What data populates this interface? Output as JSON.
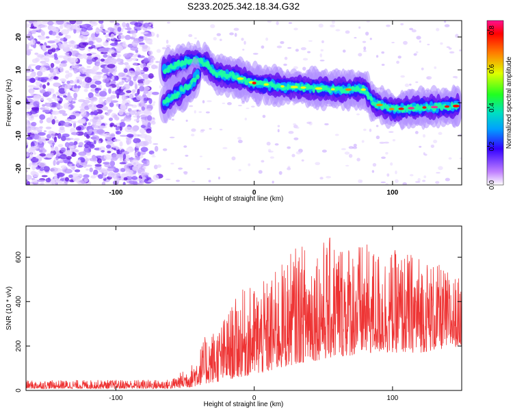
{
  "title": "S233.2025.342.18.34.G32",
  "chart_data": [
    {
      "type": "heatmap",
      "xlabel": "Height of straight line (km)",
      "ylabel": "Frequency (Hz)",
      "xlim": [
        -165,
        150
      ],
      "ylim": [
        -25,
        25
      ],
      "x_ticks": [
        -100,
        0,
        100
      ],
      "y_ticks": [
        -20,
        -10,
        0,
        10,
        20
      ],
      "colorbar": {
        "label": "Normalized spectral amplitude",
        "range": [
          0,
          0.85
        ],
        "ticks": [
          0.0,
          0.2,
          0.4,
          0.6,
          0.8
        ]
      },
      "ridge": [
        {
          "x": -65,
          "y": 10
        },
        {
          "x": -45,
          "y": 13
        },
        {
          "x": -35,
          "y": 12
        },
        {
          "x": -28,
          "y": 9
        },
        {
          "x": -15,
          "y": 8
        },
        {
          "x": 0,
          "y": 6
        },
        {
          "x": 20,
          "y": 5
        },
        {
          "x": 40,
          "y": 4.5
        },
        {
          "x": 60,
          "y": 4
        },
        {
          "x": 80,
          "y": 4
        },
        {
          "x": 86,
          "y": 0
        },
        {
          "x": 100,
          "y": -2
        },
        {
          "x": 120,
          "y": -1.5
        },
        {
          "x": 148,
          "y": -1
        }
      ],
      "ridge_lower_branch": [
        {
          "x": -65,
          "y": 0
        },
        {
          "x": -55,
          "y": 3
        },
        {
          "x": -45,
          "y": 6
        },
        {
          "x": -40,
          "y": 9
        }
      ]
    },
    {
      "type": "line",
      "xlabel": "Height of straight line (km)",
      "ylabel": "SNR (10 * v/v)",
      "xlim": [
        -165,
        150
      ],
      "ylim": [
        0,
        740
      ],
      "x_ticks": [
        -100,
        0,
        100
      ],
      "y_ticks": [
        0,
        200,
        400,
        600
      ],
      "series_color": "#ee3333",
      "trend": [
        {
          "x": -165,
          "min": 8,
          "max": 45
        },
        {
          "x": -60,
          "min": 8,
          "max": 50
        },
        {
          "x": -45,
          "min": 15,
          "max": 120
        },
        {
          "x": -35,
          "min": 30,
          "max": 250
        },
        {
          "x": -25,
          "min": 40,
          "max": 300
        },
        {
          "x": -10,
          "min": 60,
          "max": 450
        },
        {
          "x": 10,
          "min": 80,
          "max": 500
        },
        {
          "x": 30,
          "min": 120,
          "max": 650
        },
        {
          "x": 60,
          "min": 150,
          "max": 700
        },
        {
          "x": 90,
          "min": 170,
          "max": 640
        },
        {
          "x": 120,
          "min": 170,
          "max": 620
        },
        {
          "x": 150,
          "min": 200,
          "max": 500
        }
      ]
    }
  ]
}
